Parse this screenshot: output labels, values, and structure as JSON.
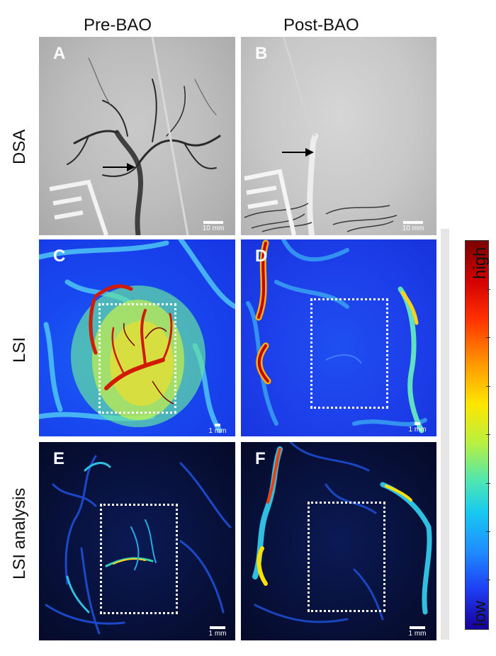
{
  "columns": {
    "pre": "Pre-BAO",
    "post": "Post-BAO"
  },
  "rows": {
    "dsa": "DSA",
    "lsi": "LSI",
    "analysis": "LSI analysis"
  },
  "panels": {
    "a": {
      "letter": "A",
      "scale": "10 mm"
    },
    "b": {
      "letter": "B",
      "scale": "10 mm"
    },
    "c": {
      "letter": "C",
      "scale": "1 mm"
    },
    "d": {
      "letter": "D",
      "scale": "1 mm"
    },
    "e": {
      "letter": "E",
      "scale": "1 mm"
    },
    "f": {
      "letter": "F",
      "scale": "1 mm"
    }
  },
  "colorbar": {
    "high": "high",
    "low": "low"
  },
  "colors": {
    "lsi_background": "#1847f0",
    "analysis_background": "#08123e",
    "roi_box": "#ffffff",
    "arrow": "#000000"
  }
}
